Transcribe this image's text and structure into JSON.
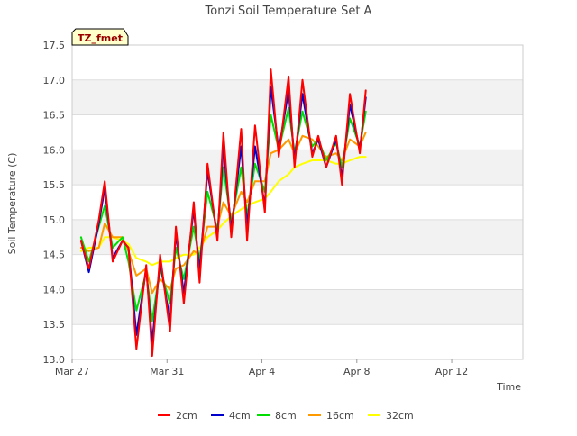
{
  "chart_data": {
    "type": "line",
    "title": "Tonzi Soil Temperature Set A",
    "xlabel": "Time",
    "ylabel": "Soil Temperature (C)",
    "annotation": "TZ_fmet",
    "ylim": [
      13.0,
      17.5
    ],
    "xlim": [
      "2024-03-27",
      "2024-04-15"
    ],
    "yticks": [
      13.0,
      13.5,
      14.0,
      14.5,
      15.0,
      15.5,
      16.0,
      16.5,
      17.0,
      17.5
    ],
    "xticks": [
      {
        "date": "2024-03-27",
        "label": "Mar 27"
      },
      {
        "date": "2024-03-31",
        "label": "Mar 31"
      },
      {
        "date": "2024-04-04",
        "label": "Apr 4"
      },
      {
        "date": "2024-04-08",
        "label": "Apr 8"
      },
      {
        "date": "2024-04-12",
        "label": "Apr 12"
      }
    ],
    "grid": true,
    "legend_position": "bottom",
    "x": [
      "2024-03-27 09:00",
      "2024-03-27 17:00",
      "2024-03-28 03:00",
      "2024-03-28 09:00",
      "2024-03-28 17:00",
      "2024-03-29 03:00",
      "2024-03-29 09:00",
      "2024-03-29 17:00",
      "2024-03-30 03:00",
      "2024-03-30 09:00",
      "2024-03-30 17:00",
      "2024-03-31 03:00",
      "2024-03-31 09:00",
      "2024-03-31 17:00",
      "2024-04-01 03:00",
      "2024-04-01 09:00",
      "2024-04-01 17:00",
      "2024-04-02 03:00",
      "2024-04-02 09:00",
      "2024-04-02 17:00",
      "2024-04-03 03:00",
      "2024-04-03 09:00",
      "2024-04-03 17:00",
      "2024-04-04 03:00",
      "2024-04-04 09:00",
      "2024-04-04 17:00",
      "2024-04-05 03:00",
      "2024-04-05 09:00",
      "2024-04-05 17:00",
      "2024-04-06 03:00",
      "2024-04-06 09:00",
      "2024-04-06 17:00",
      "2024-04-07 03:00",
      "2024-04-07 09:00",
      "2024-04-07 17:00",
      "2024-04-08 03:00",
      "2024-04-08 09:00",
      "2024-04-08 17:00",
      "2024-04-09 03:00",
      "2024-04-09 09:00",
      "2024-04-09 17:00",
      "2024-04-10 03:00",
      "2024-04-10 09:00",
      "2024-04-10 17:00",
      "2024-04-11 03:00",
      "2024-04-11 09:00",
      "2024-04-11 17:00",
      "2024-04-12 03:00",
      "2024-04-12 09:00",
      "2024-04-12 17:00",
      "2024-04-13 03:00",
      "2024-04-13 09:00",
      "2024-04-13 17:00"
    ],
    "series": [
      {
        "name": "2cm",
        "color": "#ff0000",
        "values": [
          14.7,
          14.3,
          15.0,
          15.55,
          14.4,
          14.7,
          14.6,
          13.15,
          14.35,
          13.05,
          14.5,
          13.4,
          14.9,
          13.8,
          15.25,
          14.1,
          15.8,
          14.7,
          16.25,
          14.75,
          16.3,
          14.7,
          16.35,
          15.1,
          17.15,
          15.9,
          17.05,
          15.75,
          17.0,
          15.9,
          16.2,
          15.75,
          16.2,
          15.5,
          16.8,
          15.95,
          16.85,
          null,
          null,
          null,
          null,
          null,
          null,
          null,
          null,
          null,
          null,
          null,
          null,
          null,
          null,
          null,
          null
        ]
      },
      {
        "name": "4cm",
        "color": "#0000cc",
        "values": [
          14.7,
          14.25,
          14.95,
          15.45,
          14.45,
          14.7,
          14.6,
          13.35,
          14.3,
          13.25,
          14.4,
          13.55,
          14.8,
          13.95,
          15.15,
          14.25,
          15.7,
          14.75,
          16.05,
          14.85,
          16.05,
          14.9,
          16.05,
          15.2,
          16.9,
          16.0,
          16.85,
          15.85,
          16.8,
          15.95,
          16.15,
          15.75,
          16.15,
          15.6,
          16.65,
          16.0,
          16.75,
          null,
          null,
          null,
          null,
          null,
          null,
          null,
          null,
          null,
          null,
          null,
          null,
          null,
          null,
          null,
          null
        ]
      },
      {
        "name": "8cm",
        "color": "#00dd00",
        "values": [
          14.75,
          14.4,
          14.9,
          15.2,
          14.6,
          14.75,
          14.4,
          13.7,
          14.25,
          13.55,
          14.3,
          13.8,
          14.6,
          14.15,
          14.9,
          14.4,
          15.4,
          14.85,
          15.75,
          14.95,
          15.75,
          15.05,
          15.8,
          15.4,
          16.5,
          16.0,
          16.6,
          15.95,
          16.55,
          16.05,
          16.15,
          15.85,
          16.1,
          15.75,
          16.45,
          16.05,
          16.55,
          null,
          null,
          null,
          null,
          null,
          null,
          null,
          null,
          null,
          null,
          null,
          null,
          null,
          null,
          null,
          null
        ]
      },
      {
        "name": "16cm",
        "color": "#ff9900",
        "values": [
          14.6,
          14.55,
          14.6,
          14.95,
          14.75,
          14.75,
          14.55,
          14.2,
          14.3,
          13.95,
          14.15,
          14.0,
          14.3,
          14.35,
          14.55,
          14.5,
          14.9,
          14.9,
          15.25,
          15.05,
          15.4,
          15.25,
          15.55,
          15.55,
          15.95,
          16.0,
          16.15,
          15.95,
          16.2,
          16.15,
          16.05,
          15.9,
          15.95,
          15.85,
          16.15,
          16.05,
          16.25,
          null,
          null,
          null,
          null,
          null,
          null,
          null,
          null,
          null,
          null,
          null,
          null,
          null,
          null,
          null,
          null
        ]
      },
      {
        "name": "32cm",
        "color": "#ffff00",
        "values": [
          14.55,
          14.6,
          14.6,
          14.75,
          14.75,
          14.7,
          14.65,
          14.45,
          14.4,
          14.35,
          14.4,
          14.4,
          14.45,
          14.5,
          14.5,
          14.6,
          14.75,
          14.85,
          14.95,
          15.05,
          15.15,
          15.2,
          15.25,
          15.3,
          15.4,
          15.55,
          15.65,
          15.75,
          15.8,
          15.85,
          15.85,
          15.85,
          15.8,
          15.8,
          15.85,
          15.9,
          15.9,
          null,
          null,
          null,
          null,
          null,
          null,
          null,
          null,
          null,
          null,
          null,
          null,
          null,
          null,
          null,
          null
        ]
      }
    ]
  }
}
